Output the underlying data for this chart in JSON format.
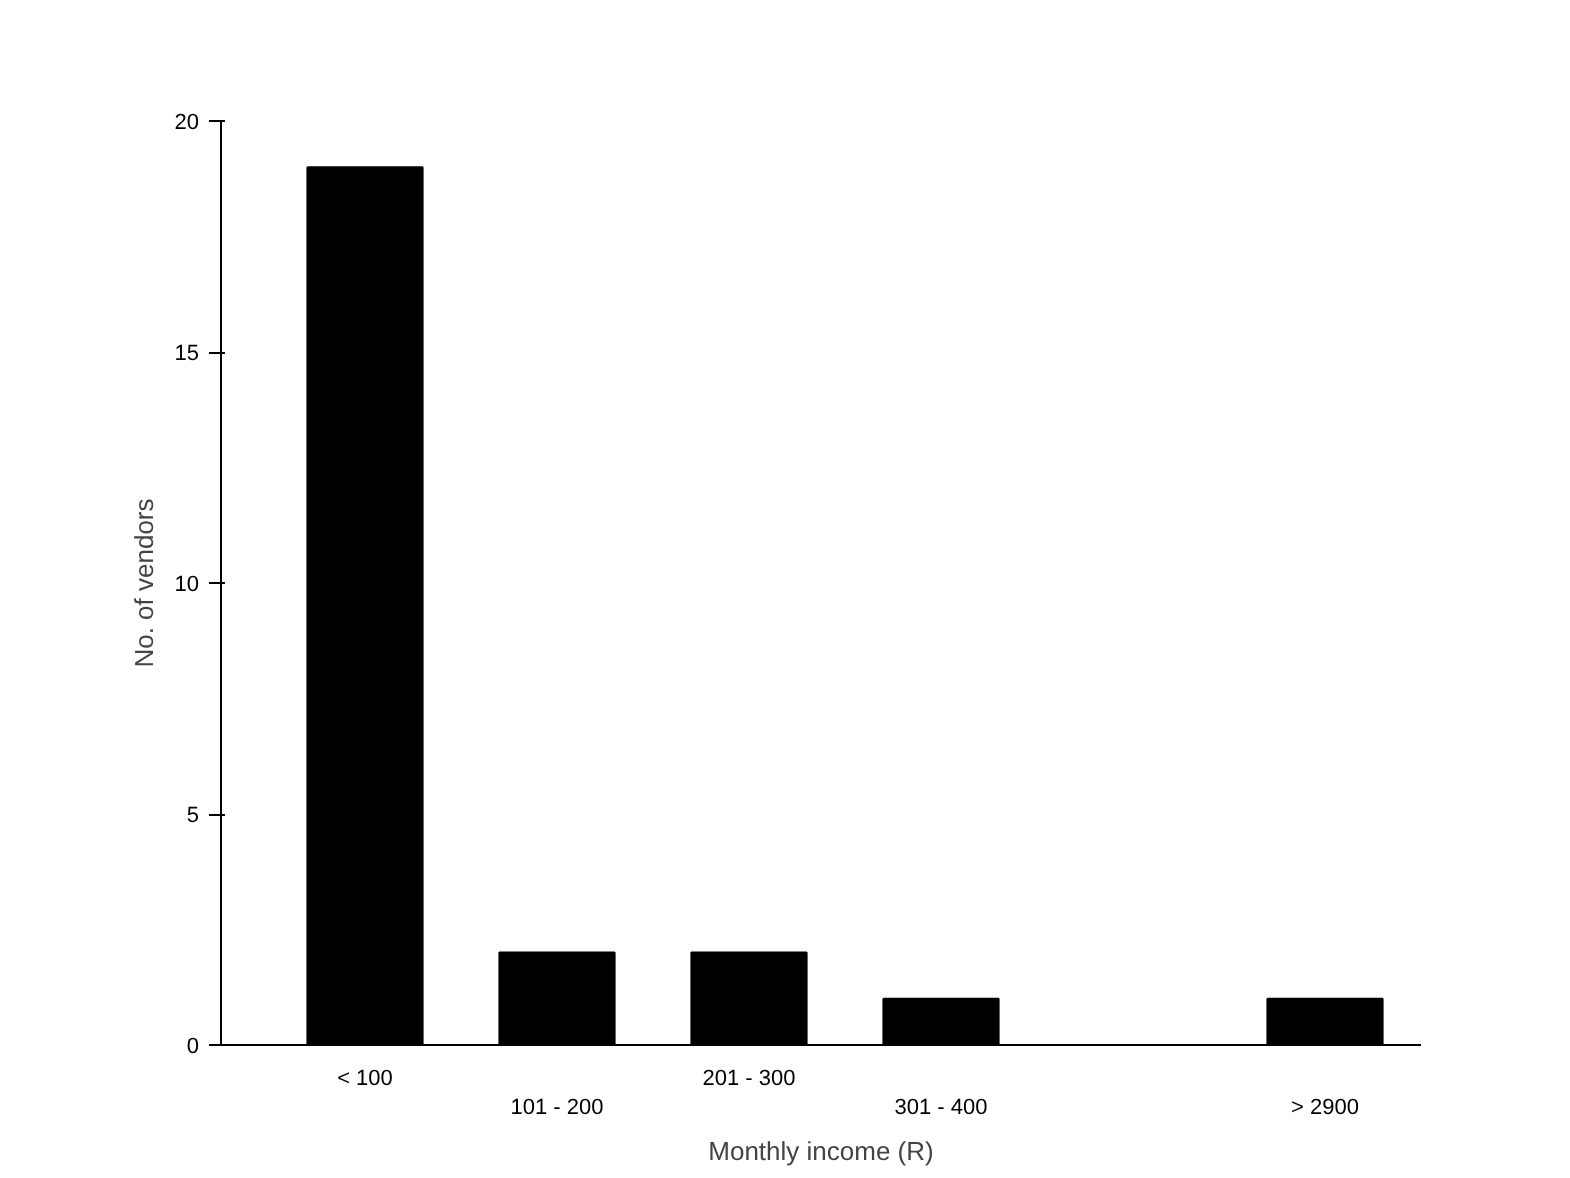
{
  "chart_data": {
    "type": "bar",
    "xlabel": "Monthly income (R)",
    "ylabel": "No. of vendors",
    "categories": [
      "< 100",
      "101 - 200",
      "201 - 300",
      "301 - 400",
      null,
      "> 2900"
    ],
    "values": [
      19,
      2,
      2,
      1,
      null,
      1
    ],
    "color": "#000000",
    "ylim": [
      0,
      20
    ],
    "yticks": [
      0,
      5,
      10,
      15,
      20
    ],
    "grid": false
  }
}
